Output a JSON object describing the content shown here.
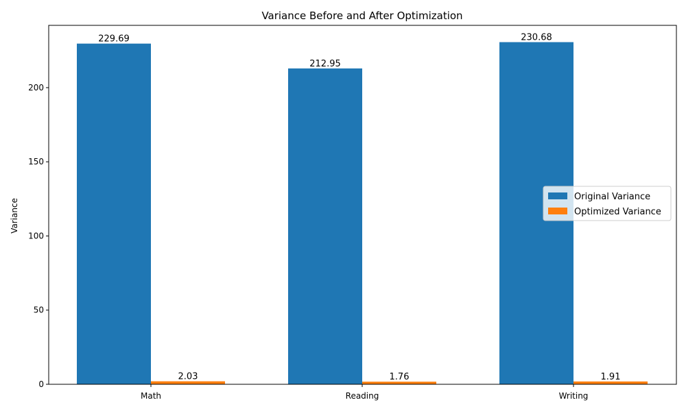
{
  "chart_data": {
    "type": "bar",
    "title": "Variance Before and After Optimization",
    "xlabel": "",
    "ylabel": "Variance",
    "categories": [
      "Math",
      "Reading",
      "Writing"
    ],
    "series": [
      {
        "name": "Original Variance",
        "values": [
          229.69,
          212.95,
          230.68
        ],
        "labels": [
          "229.69",
          "212.95",
          "230.68"
        ],
        "color": "#1f77b4"
      },
      {
        "name": "Optimized Variance",
        "values": [
          2.03,
          1.76,
          1.91
        ],
        "labels": [
          "2.03",
          "1.76",
          "1.91"
        ],
        "color": "#ff7f0e"
      }
    ],
    "ylim": [
      0,
      242
    ],
    "yticks": [
      0,
      50,
      100,
      150,
      200
    ],
    "grid": false,
    "legend_position": "center-right"
  }
}
